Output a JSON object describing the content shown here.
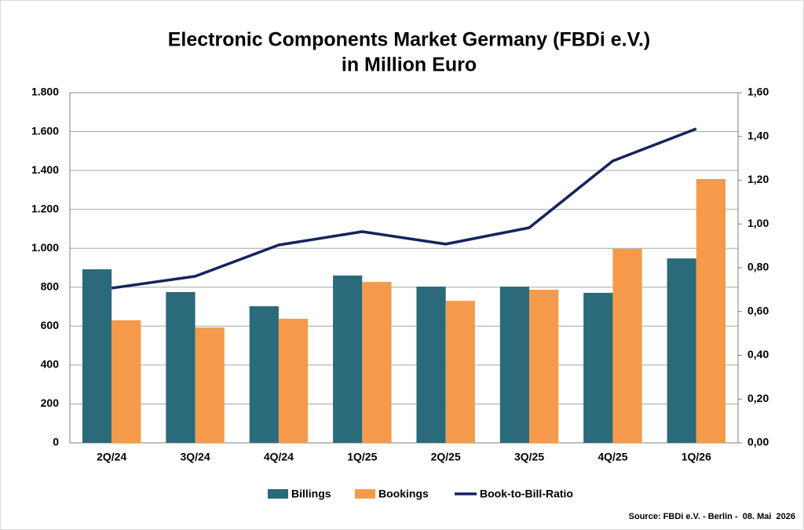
{
  "chart_data": {
    "type": "bar",
    "title": "Electronic Components Market Germany (FBDi e.V.)",
    "subtitle": "in Million Euro",
    "categories": [
      "2Q/24",
      "3Q/24",
      "4Q/24",
      "1Q/25",
      "2Q/25",
      "3Q/25",
      "4Q/25",
      "1Q/26"
    ],
    "series": [
      {
        "name": "Billings",
        "type": "bar",
        "color": "#2a6a7a",
        "values": [
          892,
          775,
          702,
          860,
          803,
          803,
          771,
          948
        ]
      },
      {
        "name": "Bookings",
        "type": "bar",
        "color": "#f59a4a",
        "values": [
          630,
          593,
          638,
          827,
          730,
          787,
          997,
          1356
        ]
      },
      {
        "name": "Book-to-Bill-Ratio",
        "type": "line",
        "axis": "y2",
        "color": "#15235f",
        "values": [
          0.707,
          0.761,
          0.904,
          0.965,
          0.908,
          0.983,
          1.288,
          1.435
        ]
      }
    ],
    "ylim": [
      0,
      1800
    ],
    "yticks": [
      0,
      200,
      400,
      600,
      800,
      {
        "value": 1000,
        "label": "1.000"
      },
      {
        "value": 1200,
        "label": "1.200"
      },
      {
        "value": 1400,
        "label": "1.400"
      },
      {
        "value": 1600,
        "label": "1.600"
      },
      {
        "value": 1800,
        "label": "1.800"
      }
    ],
    "y2lim": [
      0,
      1.6
    ],
    "y2ticks": [
      {
        "value": 0,
        "label": "0,00"
      },
      {
        "value": 0.2,
        "label": "0,20"
      },
      {
        "value": 0.4,
        "label": "0,40"
      },
      {
        "value": 0.6,
        "label": "0,60"
      },
      {
        "value": 0.8,
        "label": "0,80"
      },
      {
        "value": 1.0,
        "label": "1,00"
      },
      {
        "value": 1.2,
        "label": "1,20"
      },
      {
        "value": 1.4,
        "label": "1,40"
      },
      {
        "value": 1.6,
        "label": "1,60"
      }
    ],
    "grid": true,
    "legend": "bottom",
    "source": "Source: FBDi e.V. - Berlin -  08. Mai  2026"
  }
}
